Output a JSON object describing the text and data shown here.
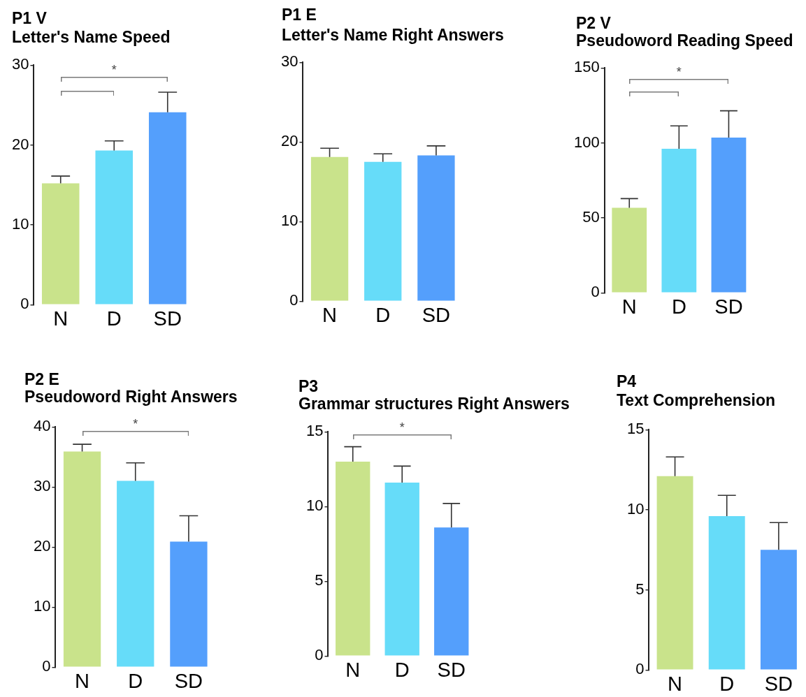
{
  "chart_data": [
    {
      "type": "bar",
      "title": "P1 V",
      "subtitle": "Letter's Name Speed",
      "categories": [
        "N",
        "D",
        "SD"
      ],
      "values": [
        15.2,
        19.3,
        24.1
      ],
      "errors": [
        [
          15.2,
          16.1
        ],
        [
          19.3,
          20.5
        ],
        [
          24.1,
          26.6
        ]
      ],
      "colors": [
        "#c9e38b",
        "#66dcf9",
        "#549ffc"
      ],
      "ylim": [
        0,
        30
      ],
      "yticks": [
        0,
        10,
        20,
        30
      ],
      "annotations": [
        "*"
      ]
    },
    {
      "type": "bar",
      "title": "P1 E",
      "subtitle": "Letter's Name Right Answers",
      "categories": [
        "N",
        "D",
        "SD"
      ],
      "values": [
        18.1,
        17.5,
        18.3
      ],
      "errors": [
        [
          18.1,
          19.2
        ],
        [
          17.5,
          18.5
        ],
        [
          18.3,
          19.5
        ]
      ],
      "colors": [
        "#c9e38b",
        "#66dcf9",
        "#549ffc"
      ],
      "ylim": [
        0,
        30
      ],
      "yticks": [
        0,
        10,
        20,
        30
      ]
    },
    {
      "type": "bar",
      "title": "P2 V",
      "subtitle": "Pseudoword Reading Speed",
      "categories": [
        "N",
        "D",
        "SD"
      ],
      "values": [
        56.7,
        96.1,
        103.5
      ],
      "errors": [
        [
          56.7,
          62.8
        ],
        [
          96.1,
          111.3
        ],
        [
          103.5,
          121.4
        ]
      ],
      "colors": [
        "#c9e38b",
        "#66dcf9",
        "#549ffc"
      ],
      "ylim": [
        0,
        150
      ],
      "yticks": [
        0,
        50,
        100,
        150
      ],
      "annotations": [
        "*"
      ]
    },
    {
      "type": "bar",
      "title": "P2 E",
      "subtitle": "Pseudoword Right Answers",
      "categories": [
        "N",
        "D",
        "SD"
      ],
      "values": [
        35.9,
        31,
        20.9
      ],
      "errors": [
        [
          35.9,
          37.1
        ],
        [
          31,
          34
        ],
        [
          20.9,
          25.2
        ]
      ],
      "colors": [
        "#c9e38b",
        "#66dcf9",
        "#549ffc"
      ],
      "ylim": [
        0,
        40
      ],
      "yticks": [
        0,
        10,
        20,
        30,
        40
      ],
      "annotations": [
        "*"
      ]
    },
    {
      "type": "bar",
      "title": "P3",
      "subtitle": "Grammar structures Right Answers",
      "categories": [
        "N",
        "D",
        "SD"
      ],
      "values": [
        13,
        11.6,
        8.6
      ],
      "errors": [
        [
          13,
          14
        ],
        [
          11.6,
          12.7
        ],
        [
          8.6,
          10.2
        ]
      ],
      "colors": [
        "#c9e38b",
        "#66dcf9",
        "#549ffc"
      ],
      "ylim": [
        0,
        15
      ],
      "yticks": [
        0,
        5,
        10,
        15
      ],
      "annotations": [
        "*"
      ]
    },
    {
      "type": "bar",
      "title": "P4",
      "subtitle": "Text Comprehension",
      "categories": [
        "N",
        "D",
        "SD"
      ],
      "values": [
        12.1,
        9.6,
        7.5
      ],
      "errors": [
        [
          12.1,
          13.3
        ],
        [
          9.6,
          10.9
        ],
        [
          7.5,
          9.2
        ]
      ],
      "colors": [
        "#c9e38b",
        "#66dcf9",
        "#549ffc"
      ],
      "ylim": [
        0,
        15
      ],
      "yticks": [
        0,
        5,
        10,
        15
      ]
    }
  ]
}
